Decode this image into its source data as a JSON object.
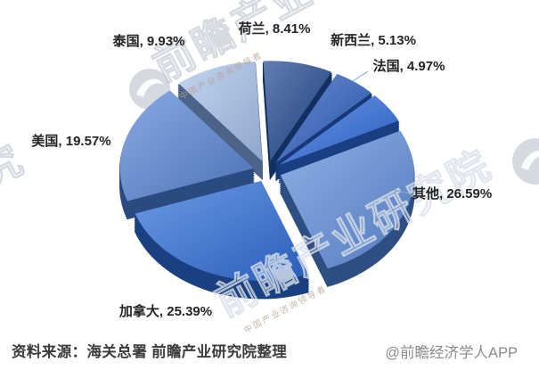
{
  "chart_data": {
    "type": "pie",
    "title": "",
    "unit": "%",
    "slices": [
      {
        "label": "荷兰",
        "value": 8.41,
        "display": "荷兰, 8.41%",
        "color": "#20468f"
      },
      {
        "label": "新西兰",
        "value": 5.13,
        "display": "新西兰, 5.13%",
        "color": "#2b5ec2"
      },
      {
        "label": "法国",
        "value": 4.97,
        "display": "法国, 4.97%",
        "color": "#2e6cdc"
      },
      {
        "label": "其他",
        "value": 26.59,
        "display": "其他, 26.59%",
        "color": "#6090dd"
      },
      {
        "label": "加拿大",
        "value": 25.39,
        "display": "加拿大, 25.39%",
        "color": "#2f6ed9"
      },
      {
        "label": "美国",
        "value": 19.57,
        "display": "美国, 19.57%",
        "color": "#5886d6"
      },
      {
        "label": "泰国",
        "value": 9.93,
        "display": "泰国, 9.93%",
        "color": "#a9c3ec"
      }
    ],
    "layout": {
      "start_angle_deg": -3,
      "clockwise": true,
      "exploded": true,
      "three_d": true,
      "legend": "none"
    }
  },
  "footer": {
    "source": "资料来源：海关总署 前瞻产业研究院整理",
    "credit": "@前瞻经济学人APP"
  },
  "watermark": {
    "brand_full": "前瞻产业研究院",
    "tagline": "中国产业咨询领导者",
    "logo": "qianzhan-logo"
  }
}
